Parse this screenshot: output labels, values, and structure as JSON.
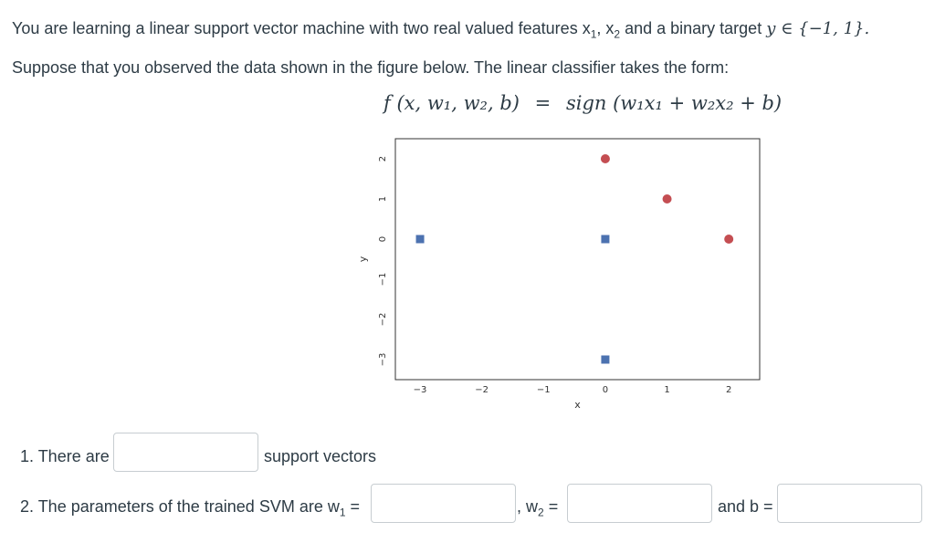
{
  "question": {
    "intro_text": "You are learning a linear support vector machine with two real valued features x",
    "intro_text_2": " and a binary target ",
    "intro_target_math": "y ∈ {−1, 1}.",
    "sub1": "1",
    "sub2": "2",
    "features_sep": ", x",
    "line2": "Suppose that you observed the data shown in the figure below. The linear classifier takes the form:",
    "formula_lhs": "f (x, w₁, w₂, b)",
    "formula_eq": "=",
    "formula_rhs": "sign (w₁x₁ + w₂x₂ + b)"
  },
  "answers": {
    "q1_prefix": "1. There are",
    "q1_suffix": "support vectors",
    "q2_prefix": "2. The parameters of the trained SVM are w",
    "q2_w1_eq": " =",
    "q2_w2_prefix": ", w",
    "q2_w2_eq": " =",
    "q2_b_label": "and b =",
    "sub1": "1",
    "sub2": "2"
  },
  "colors": {
    "positive": "#c44e52",
    "negative": "#4c72b0"
  },
  "chart_data": {
    "type": "scatter",
    "xlabel": "x",
    "ylabel": "y",
    "xlim": [
      -3.4,
      2.5
    ],
    "ylim": [
      -3.5,
      2.5
    ],
    "x_ticks": [
      -3,
      -2,
      -1,
      0,
      1,
      2
    ],
    "y_ticks": [
      2,
      1,
      0,
      -1,
      -2,
      -3
    ],
    "grid": false,
    "series": [
      {
        "marker": "square",
        "color": "#4c72b0",
        "points": [
          [
            -3,
            0
          ],
          [
            0,
            0
          ],
          [
            0,
            -3
          ]
        ]
      },
      {
        "marker": "circle",
        "color": "#c44e52",
        "points": [
          [
            0,
            2
          ],
          [
            1,
            1
          ],
          [
            2,
            0
          ]
        ]
      }
    ]
  }
}
